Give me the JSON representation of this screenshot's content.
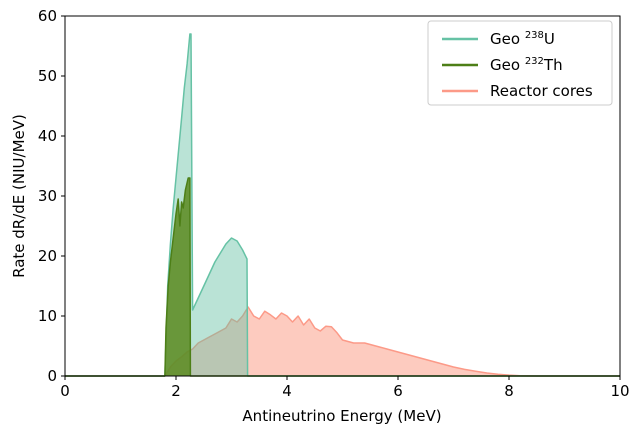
{
  "chart_data": {
    "type": "area",
    "title": "",
    "xlabel": "Antineutrino Energy (MeV)",
    "ylabel": "Rate dR/dE (NIU/MeV)",
    "xlim": [
      0,
      10
    ],
    "ylim": [
      0,
      60
    ],
    "xticks": [
      0,
      2,
      4,
      6,
      8,
      10
    ],
    "yticks": [
      0,
      10,
      20,
      30,
      40,
      50,
      60
    ],
    "grid": false,
    "legend_position": "top-right",
    "legend": [
      {
        "prefix": "Geo ",
        "sup": "238",
        "suffix": "U",
        "color": "#66c2a5"
      },
      {
        "prefix": "Geo ",
        "sup": "232",
        "suffix": "Th",
        "color": "#4d7f17"
      },
      {
        "prefix": "Reactor cores",
        "sup": "",
        "suffix": "",
        "color": "#fc9a88"
      }
    ],
    "series": [
      {
        "id": "reactor",
        "line_color": "#fc9a88",
        "fill_color": "#fcb9aa",
        "fill_opacity": 0.75,
        "x": [
          0,
          1.8,
          1.9,
          2.0,
          2.1,
          2.2,
          2.3,
          2.4,
          2.5,
          2.6,
          2.7,
          2.8,
          2.9,
          3.0,
          3.1,
          3.2,
          3.3,
          3.4,
          3.5,
          3.6,
          3.7,
          3.8,
          3.9,
          4.0,
          4.1,
          4.2,
          4.3,
          4.4,
          4.5,
          4.6,
          4.7,
          4.8,
          4.9,
          5.0,
          5.2,
          5.4,
          5.6,
          5.8,
          6.0,
          6.2,
          6.4,
          6.6,
          6.8,
          7.0,
          7.2,
          7.4,
          7.6,
          7.8,
          8.0,
          8.2,
          8.5,
          10
        ],
        "y": [
          0,
          0,
          1.5,
          2.5,
          3.2,
          4.0,
          4.5,
          5.5,
          6.0,
          6.5,
          7.0,
          7.5,
          8.0,
          9.5,
          9.0,
          10.0,
          11.5,
          10.0,
          9.5,
          10.8,
          10.2,
          9.5,
          10.5,
          10.0,
          9.0,
          10.0,
          8.5,
          9.5,
          8.0,
          7.5,
          8.3,
          8.2,
          7.2,
          6.0,
          5.5,
          5.5,
          5.0,
          4.5,
          4.0,
          3.5,
          3.0,
          2.5,
          2.0,
          1.5,
          1.1,
          0.8,
          0.5,
          0.3,
          0.15,
          0.05,
          0,
          0
        ]
      },
      {
        "id": "u238",
        "line_color": "#66c2a5",
        "fill_color": "#66c2a5",
        "fill_opacity": 0.45,
        "x": [
          0,
          1.8,
          1.85,
          1.9,
          1.95,
          2.0,
          2.05,
          2.1,
          2.15,
          2.2,
          2.25,
          2.27,
          2.3,
          2.5,
          2.7,
          2.9,
          3.0,
          3.1,
          3.2,
          3.28,
          3.29,
          3.3,
          10
        ],
        "y": [
          0,
          0,
          15,
          22,
          28,
          33,
          38,
          43,
          48,
          52,
          57,
          57,
          11,
          15,
          19,
          22,
          23,
          22.5,
          21,
          19.5,
          0,
          0,
          0
        ]
      },
      {
        "id": "th232",
        "line_color": "#4d7f17",
        "fill_color": "#5b8a1e",
        "fill_opacity": 0.85,
        "x": [
          0,
          1.8,
          1.82,
          1.86,
          1.9,
          1.95,
          2.0,
          2.04,
          2.07,
          2.1,
          2.13,
          2.17,
          2.22,
          2.25,
          2.26,
          2.28,
          10
        ],
        "y": [
          0,
          0,
          8,
          15,
          19,
          23,
          27,
          29.5,
          25,
          29,
          28,
          31,
          33,
          33,
          0,
          0,
          0
        ]
      }
    ]
  }
}
